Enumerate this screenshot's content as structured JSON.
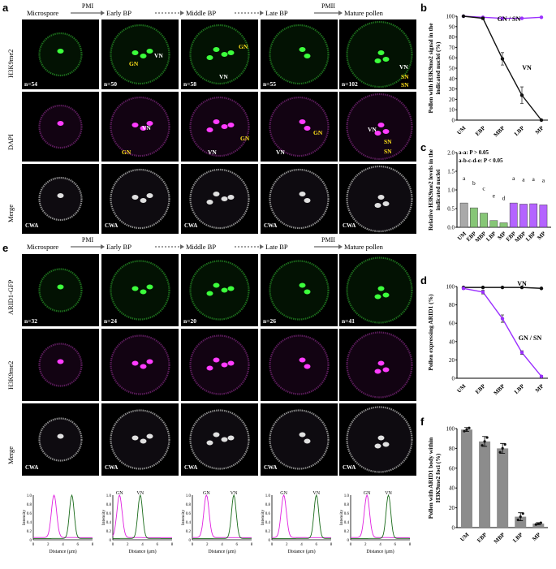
{
  "panels": {
    "a": {
      "label": "a",
      "stages": [
        "Microspore",
        "Early BP",
        "Middle BP",
        "Late BP",
        "Mature pollen"
      ],
      "transitions": [
        "PMI",
        "",
        "",
        "PMII"
      ],
      "rows": [
        "H3K9me2",
        "DAPI",
        "Merge"
      ],
      "counts": [
        "n=54",
        "n=50",
        "n=58",
        "n=55",
        "n=102"
      ],
      "nuclei": {
        "gn": "GN",
        "vn": "VN",
        "sn": "SN",
        "cwa": "CWA"
      }
    },
    "e": {
      "label": "e",
      "stages": [
        "Microspore",
        "Early BP",
        "Middle BP",
        "Late BP",
        "Mature pollen"
      ],
      "transitions": [
        "PMI",
        "",
        "",
        "PMII"
      ],
      "rows": [
        "ARID1-GFP",
        "H3K9me2",
        "Merge"
      ],
      "counts": [
        "n=32",
        "n=24",
        "n=20",
        "n=26",
        "n=41"
      ],
      "profile_ylabel": "Intensity",
      "profile_xlabel": "Distance (μm)"
    }
  },
  "chart_data": [
    {
      "id": "b",
      "type": "line",
      "ylabel": "Pollen with H3K9me2 signal in the indicated nuclei (%)",
      "categories": [
        "UM",
        "EBP",
        "MBP",
        "LBP",
        "MP"
      ],
      "ylim": [
        0,
        100
      ],
      "yticks": [
        0,
        10,
        20,
        30,
        40,
        50,
        60,
        70,
        80,
        90,
        100
      ],
      "series": [
        {
          "name": "GN / SN",
          "color": "#9b30ff",
          "values": [
            100,
            99,
            98,
            98,
            99
          ]
        },
        {
          "name": "VN",
          "color": "#111111",
          "values": [
            100,
            98,
            59,
            24,
            0
          ],
          "errors": [
            0,
            1,
            6,
            8,
            0
          ]
        }
      ]
    },
    {
      "id": "c",
      "type": "bar",
      "ylabel": "Relative H3K9me2 levels in the indicated nuclei",
      "categories": [
        "UM",
        "EBP",
        "MBP",
        "LBP",
        "MP",
        "EBP",
        "MBP",
        "LBP",
        "MP"
      ],
      "values": [
        0.65,
        0.52,
        0.38,
        0.18,
        0.12,
        0.65,
        0.62,
        0.63,
        0.6
      ],
      "colors": [
        "#8c8c8c",
        "#5fb34a",
        "#5fb34a",
        "#5fb34a",
        "#5fb34a",
        "#9b30ff",
        "#9b30ff",
        "#9b30ff",
        "#9b30ff"
      ],
      "letters": [
        "a",
        "b",
        "c",
        "e",
        "d",
        "a",
        "a",
        "a",
        "a"
      ],
      "ylim": [
        0,
        2.0
      ],
      "yticks": [
        0.0,
        0.5,
        1.0,
        1.5,
        2.0
      ],
      "annotations": [
        "a-a: P > 0.05",
        "a-b-c-d-e: P < 0.05"
      ]
    },
    {
      "id": "d",
      "type": "line",
      "ylabel": "Pollen expressing ARID1 (%)",
      "categories": [
        "UM",
        "EBP",
        "MBP",
        "LBP",
        "MP"
      ],
      "ylim": [
        0,
        100
      ],
      "yticks": [
        0,
        20,
        40,
        60,
        80,
        100
      ],
      "series": [
        {
          "name": "VN",
          "color": "#111111",
          "values": [
            99,
            99,
            99,
            99,
            98
          ]
        },
        {
          "name": "GN / SN",
          "color": "#9b30ff",
          "values": [
            98,
            94,
            65,
            28,
            2
          ],
          "errors": [
            1,
            2,
            4,
            2,
            1
          ]
        }
      ]
    },
    {
      "id": "f",
      "type": "bar",
      "ylabel": "Pollen with ARID1 body within H3K9me2 foci (%)",
      "categories": [
        "UM",
        "EBP",
        "MBP",
        "LBP",
        "MP"
      ],
      "values": [
        99,
        87,
        80,
        11,
        4
      ],
      "errors": [
        2,
        5,
        5,
        4,
        1
      ],
      "ylim": [
        0,
        100
      ],
      "yticks": [
        0,
        20,
        40,
        60,
        80,
        100
      ],
      "color": "#8c8c8c"
    }
  ]
}
